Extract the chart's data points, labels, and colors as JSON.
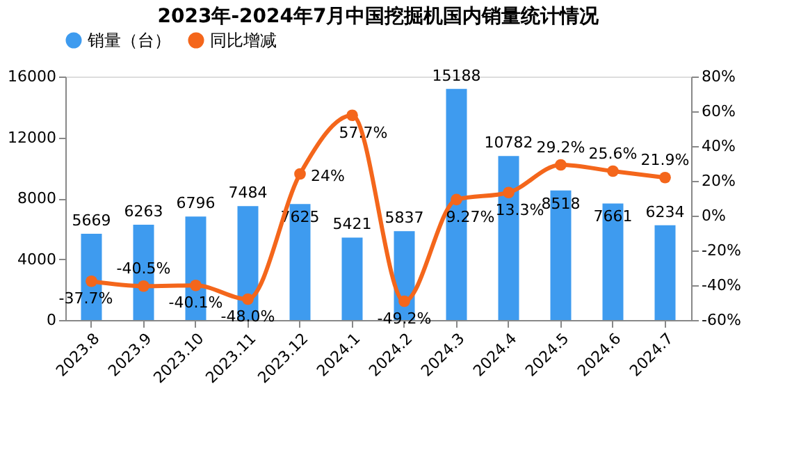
{
  "chart_data": {
    "type": "bar",
    "title": "2023年-2024年7月中国挖掘机国内销量统计情况",
    "categories": [
      "2023.8",
      "2023.9",
      "2023.10",
      "2023.11",
      "2023.12",
      "2024.1",
      "2024.2",
      "2024.3",
      "2024.4",
      "2024.5",
      "2024.6",
      "2024.7"
    ],
    "series": [
      {
        "name": "销量（台）",
        "color": "#3e9bef",
        "values": [
          5669,
          6263,
          6796,
          7484,
          7625,
          5421,
          5837,
          15188,
          10782,
          8518,
          7661,
          6234
        ]
      },
      {
        "name": "同比增减",
        "type": "line",
        "axis": "y2",
        "color": "#f4661b",
        "marker": "circle",
        "values": [
          -37.7,
          -40.5,
          -40.1,
          -48.0,
          24,
          57.7,
          -49.2,
          9.27,
          13.3,
          29.2,
          25.6,
          21.9
        ],
        "value_labels": [
          "-37.7%",
          "-40.5%",
          "-40.1%",
          "-48.0%",
          "24%",
          "57.7%",
          "-49.2%",
          "9.27%",
          "13.3%",
          "29.2%",
          "25.6%",
          "21.9%"
        ]
      }
    ],
    "ylim": [
      0,
      16000
    ],
    "yticks": [
      0,
      4000,
      8000,
      12000,
      16000
    ],
    "y2lim": [
      -60,
      80
    ],
    "y2ticks": [
      {
        "value": -60,
        "label": "-60%"
      },
      {
        "value": -40,
        "label": "-40%"
      },
      {
        "value": -20,
        "label": "-20%"
      },
      {
        "value": 0,
        "label": "0%"
      },
      {
        "value": 20,
        "label": "20%"
      },
      {
        "value": 40,
        "label": "40%"
      },
      {
        "value": 60,
        "label": "60%"
      },
      {
        "value": 80,
        "label": "80%"
      }
    ],
    "data_labels": true,
    "grid": false,
    "legend": "top"
  }
}
